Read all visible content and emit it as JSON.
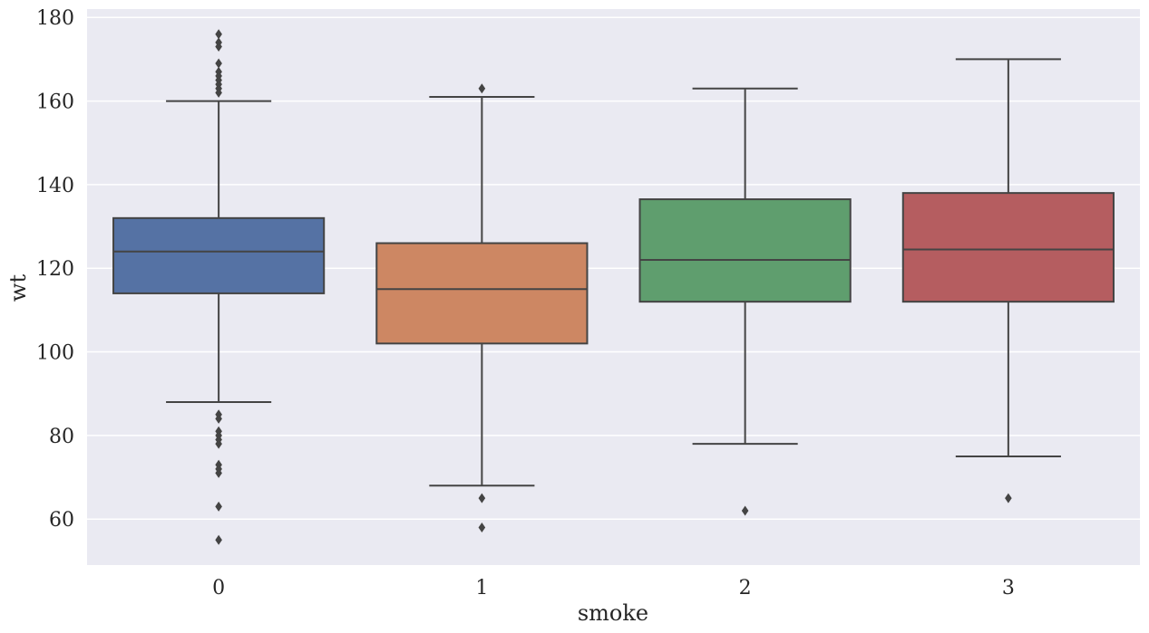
{
  "chart_data": {
    "type": "box",
    "xlabel": "smoke",
    "ylabel": "wt",
    "ylim": [
      49,
      182
    ],
    "yticks": [
      60,
      80,
      100,
      120,
      140,
      160,
      180
    ],
    "categories": [
      "0",
      "1",
      "2",
      "3"
    ],
    "colors": [
      "#5572a4",
      "#cd8763",
      "#5f9e6e",
      "#b55d60"
    ],
    "grid": true,
    "boxes": [
      {
        "category": "0",
        "whisker_low": 88,
        "q1": 114,
        "median": 124,
        "q3": 132,
        "whisker_high": 160,
        "outliers": [
          176,
          174,
          173,
          169,
          167,
          166,
          165,
          164,
          163,
          162,
          85,
          84,
          81,
          80,
          79,
          78,
          73,
          72,
          71,
          63,
          55
        ]
      },
      {
        "category": "1",
        "whisker_low": 68,
        "q1": 102,
        "median": 115,
        "q3": 126,
        "whisker_high": 161,
        "outliers": [
          163,
          65,
          58
        ]
      },
      {
        "category": "2",
        "whisker_low": 78,
        "q1": 112,
        "median": 122,
        "q3": 136.5,
        "whisker_high": 163,
        "outliers": [
          62
        ]
      },
      {
        "category": "3",
        "whisker_low": 75,
        "q1": 112,
        "median": 124.5,
        "q3": 138,
        "whisker_high": 170,
        "outliers": [
          65
        ]
      }
    ]
  }
}
